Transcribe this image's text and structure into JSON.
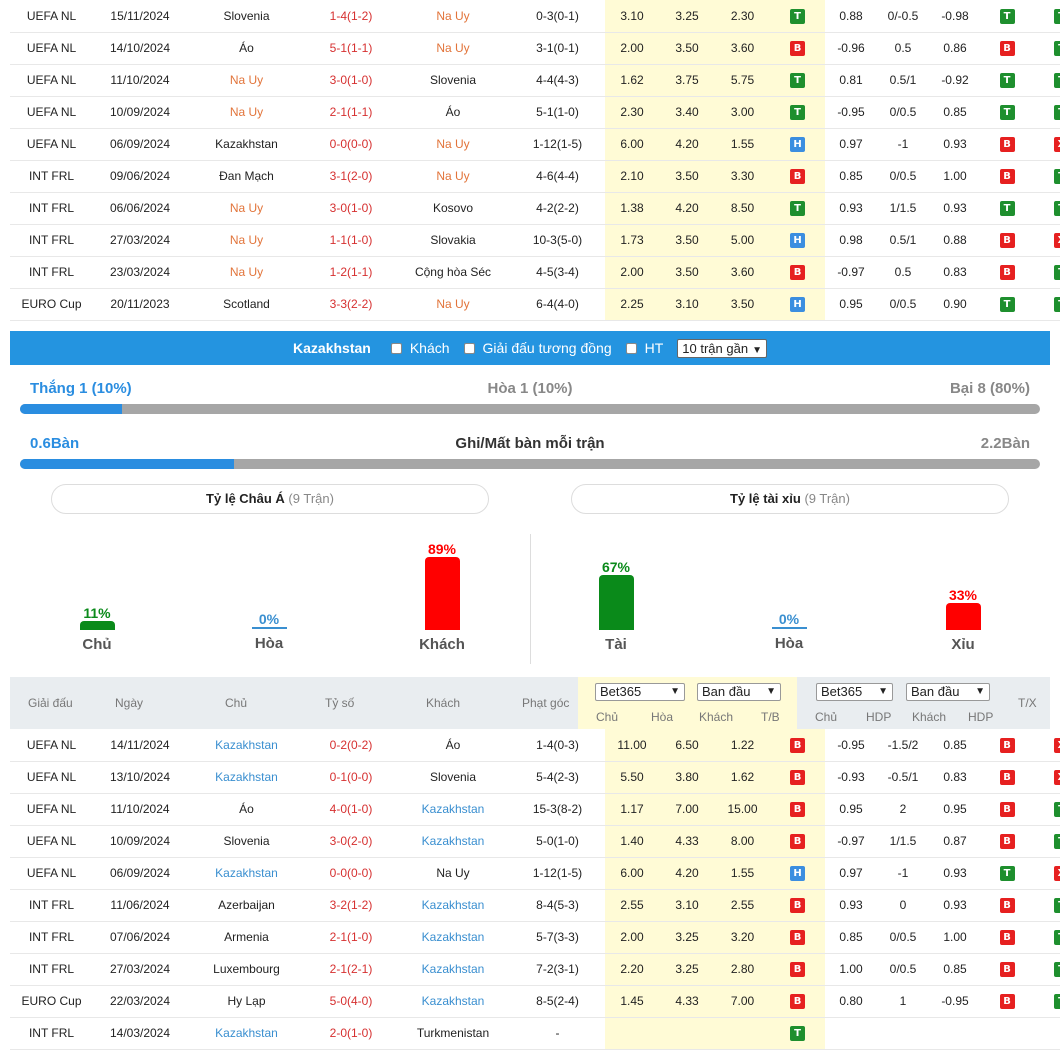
{
  "top_rows": [
    {
      "league": "UEFA NL",
      "date": "15/11/2024",
      "home": "Slovenia",
      "home_hl": false,
      "score": "1-4(1-2)",
      "away": "Na Uy",
      "away_hl": true,
      "corner": "0-3(0-1)",
      "o1": "3.10",
      "o2": "3.25",
      "o3": "2.30",
      "tb": "T",
      "a1": "0.88",
      "a2": "0/-0.5",
      "a3": "-0.98",
      "r1": "T",
      "r2": "T"
    },
    {
      "league": "UEFA NL",
      "date": "14/10/2024",
      "home": "Áo",
      "home_hl": false,
      "score": "5-1(1-1)",
      "away": "Na Uy",
      "away_hl": true,
      "corner": "3-1(0-1)",
      "o1": "2.00",
      "o2": "3.50",
      "o3": "3.60",
      "tb": "B",
      "a1": "-0.96",
      "a2": "0.5",
      "a3": "0.86",
      "r1": "B",
      "r2": "T"
    },
    {
      "league": "UEFA NL",
      "date": "11/10/2024",
      "home": "Na Uy",
      "home_hl": true,
      "score": "3-0(1-0)",
      "away": "Slovenia",
      "away_hl": false,
      "corner": "4-4(4-3)",
      "o1": "1.62",
      "o2": "3.75",
      "o3": "5.75",
      "tb": "T",
      "a1": "0.81",
      "a2": "0.5/1",
      "a3": "-0.92",
      "r1": "T",
      "r2": "T"
    },
    {
      "league": "UEFA NL",
      "date": "10/09/2024",
      "home": "Na Uy",
      "home_hl": true,
      "score": "2-1(1-1)",
      "away": "Áo",
      "away_hl": false,
      "corner": "5-1(1-0)",
      "o1": "2.30",
      "o2": "3.40",
      "o3": "3.00",
      "tb": "T",
      "a1": "-0.95",
      "a2": "0/0.5",
      "a3": "0.85",
      "r1": "T",
      "r2": "T"
    },
    {
      "league": "UEFA NL",
      "date": "06/09/2024",
      "home": "Kazakhstan",
      "home_hl": false,
      "score": "0-0(0-0)",
      "away": "Na Uy",
      "away_hl": true,
      "corner": "1-12(1-5)",
      "o1": "6.00",
      "o2": "4.20",
      "o3": "1.55",
      "tb": "H",
      "a1": "0.97",
      "a2": "-1",
      "a3": "0.93",
      "r1": "B",
      "r2": "X"
    },
    {
      "league": "INT FRL",
      "date": "09/06/2024",
      "home": "Đan Mạch",
      "home_hl": false,
      "score": "3-1(2-0)",
      "away": "Na Uy",
      "away_hl": true,
      "corner": "4-6(4-4)",
      "o1": "2.10",
      "o2": "3.50",
      "o3": "3.30",
      "tb": "B",
      "a1": "0.85",
      "a2": "0/0.5",
      "a3": "1.00",
      "r1": "B",
      "r2": "T"
    },
    {
      "league": "INT FRL",
      "date": "06/06/2024",
      "home": "Na Uy",
      "home_hl": true,
      "score": "3-0(1-0)",
      "away": "Kosovo",
      "away_hl": false,
      "corner": "4-2(2-2)",
      "o1": "1.38",
      "o2": "4.20",
      "o3": "8.50",
      "tb": "T",
      "a1": "0.93",
      "a2": "1/1.5",
      "a3": "0.93",
      "r1": "T",
      "r2": "T"
    },
    {
      "league": "INT FRL",
      "date": "27/03/2024",
      "home": "Na Uy",
      "home_hl": true,
      "score": "1-1(1-0)",
      "away": "Slovakia",
      "away_hl": false,
      "corner": "10-3(5-0)",
      "o1": "1.73",
      "o2": "3.50",
      "o3": "5.00",
      "tb": "H",
      "a1": "0.98",
      "a2": "0.5/1",
      "a3": "0.88",
      "r1": "B",
      "r2": "X"
    },
    {
      "league": "INT FRL",
      "date": "23/03/2024",
      "home": "Na Uy",
      "home_hl": true,
      "score": "1-2(1-1)",
      "away": "Cộng hòa Séc",
      "away_hl": false,
      "corner": "4-5(3-4)",
      "o1": "2.00",
      "o2": "3.50",
      "o3": "3.60",
      "tb": "B",
      "a1": "-0.97",
      "a2": "0.5",
      "a3": "0.83",
      "r1": "B",
      "r2": "T"
    },
    {
      "league": "EURO Cup",
      "date": "20/11/2023",
      "home": "Scotland",
      "home_hl": false,
      "score": "3-3(2-2)",
      "away": "Na Uy",
      "away_hl": true,
      "corner": "6-4(4-0)",
      "o1": "2.25",
      "o2": "3.10",
      "o3": "3.50",
      "tb": "H",
      "a1": "0.95",
      "a2": "0/0.5",
      "a3": "0.90",
      "r1": "T",
      "r2": "T"
    }
  ],
  "filter": {
    "team": "Kazakhstan",
    "opt_away": "Khách",
    "opt_same_league": "Giải đấu tương đồng",
    "opt_ht": "HT",
    "select": "10 trận gần"
  },
  "wdl": {
    "win": "Thắng 1 (10%)",
    "draw": "Hòa 1 (10%)",
    "loss": "Bại 8 (80%)",
    "win_fraction": 0.1
  },
  "goals": {
    "for": "0.6Bàn",
    "label": "Ghi/Mất bàn mỗi trận",
    "against": "2.2Bàn",
    "for_fraction": 0.21
  },
  "asian": {
    "title": "Tỷ lệ Châu Á",
    "count": "(9 Trận)",
    "items": [
      {
        "label": "Chủ",
        "pct": "11%",
        "value": 11,
        "color": "#0a8a1a"
      },
      {
        "label": "Hòa",
        "pct": "0%",
        "value": 0,
        "color": "#3a8fd0"
      },
      {
        "label": "Khách",
        "pct": "89%",
        "value": 89,
        "color": "#ff0000"
      }
    ]
  },
  "ou": {
    "title": "Tỷ lệ tài xỉu",
    "count": "(9 Trận)",
    "items": [
      {
        "label": "Tài",
        "pct": "67%",
        "value": 67,
        "color": "#0a8a1a"
      },
      {
        "label": "Hòa",
        "pct": "0%",
        "value": 0,
        "color": "#3a8fd0"
      },
      {
        "label": "Xỉu",
        "pct": "33%",
        "value": 33,
        "color": "#ff0000"
      }
    ]
  },
  "bot_header": {
    "league": "Giải đấu",
    "date": "Ngày",
    "home": "Chủ",
    "score": "Tỷ số",
    "away": "Khách",
    "corner": "Phạt góc",
    "sel1": "Bet365",
    "sel2": "Ban đầu",
    "sel3": "Bet365",
    "sel4": "Ban đầu",
    "c_home": "Chủ",
    "c_draw": "Hòa",
    "c_away": "Khách",
    "c_tb": "T/B",
    "a_home": "Chủ",
    "a_hdp": "HDP",
    "a_away": "Khách",
    "a_hdp2": "HDP",
    "tx": "T/X"
  },
  "bot_rows": [
    {
      "league": "UEFA NL",
      "date": "14/11/2024",
      "home": "Kazakhstan",
      "home_hl": true,
      "score": "0-2(0-2)",
      "away": "Áo",
      "away_hl": false,
      "corner": "1-4(0-3)",
      "o1": "11.00",
      "o2": "6.50",
      "o3": "1.22",
      "tb": "B",
      "a1": "-0.95",
      "a2": "-1.5/2",
      "a3": "0.85",
      "r1": "B",
      "r2": "X"
    },
    {
      "league": "UEFA NL",
      "date": "13/10/2024",
      "home": "Kazakhstan",
      "home_hl": true,
      "score": "0-1(0-0)",
      "away": "Slovenia",
      "away_hl": false,
      "corner": "5-4(2-3)",
      "o1": "5.50",
      "o2": "3.80",
      "o3": "1.62",
      "tb": "B",
      "a1": "-0.93",
      "a2": "-0.5/1",
      "a3": "0.83",
      "r1": "B",
      "r2": "X"
    },
    {
      "league": "UEFA NL",
      "date": "11/10/2024",
      "home": "Áo",
      "home_hl": false,
      "score": "4-0(1-0)",
      "away": "Kazakhstan",
      "away_hl": true,
      "corner": "15-3(8-2)",
      "o1": "1.17",
      "o2": "7.00",
      "o3": "15.00",
      "tb": "B",
      "a1": "0.95",
      "a2": "2",
      "a3": "0.95",
      "r1": "B",
      "r2": "T"
    },
    {
      "league": "UEFA NL",
      "date": "10/09/2024",
      "home": "Slovenia",
      "home_hl": false,
      "score": "3-0(2-0)",
      "away": "Kazakhstan",
      "away_hl": true,
      "corner": "5-0(1-0)",
      "o1": "1.40",
      "o2": "4.33",
      "o3": "8.00",
      "tb": "B",
      "a1": "-0.97",
      "a2": "1/1.5",
      "a3": "0.87",
      "r1": "B",
      "r2": "T"
    },
    {
      "league": "UEFA NL",
      "date": "06/09/2024",
      "home": "Kazakhstan",
      "home_hl": true,
      "score": "0-0(0-0)",
      "away": "Na Uy",
      "away_hl": false,
      "corner": "1-12(1-5)",
      "o1": "6.00",
      "o2": "4.20",
      "o3": "1.55",
      "tb": "H",
      "a1": "0.97",
      "a2": "-1",
      "a3": "0.93",
      "r1": "T",
      "r2": "X"
    },
    {
      "league": "INT FRL",
      "date": "11/06/2024",
      "home": "Azerbaijan",
      "home_hl": false,
      "score": "3-2(1-2)",
      "away": "Kazakhstan",
      "away_hl": true,
      "corner": "8-4(5-3)",
      "o1": "2.55",
      "o2": "3.10",
      "o3": "2.55",
      "tb": "B",
      "a1": "0.93",
      "a2": "0",
      "a3": "0.93",
      "r1": "B",
      "r2": "T"
    },
    {
      "league": "INT FRL",
      "date": "07/06/2024",
      "home": "Armenia",
      "home_hl": false,
      "score": "2-1(1-0)",
      "away": "Kazakhstan",
      "away_hl": true,
      "corner": "5-7(3-3)",
      "o1": "2.00",
      "o2": "3.25",
      "o3": "3.20",
      "tb": "B",
      "a1": "0.85",
      "a2": "0/0.5",
      "a3": "1.00",
      "r1": "B",
      "r2": "T"
    },
    {
      "league": "INT FRL",
      "date": "27/03/2024",
      "home": "Luxembourg",
      "home_hl": false,
      "score": "2-1(2-1)",
      "away": "Kazakhstan",
      "away_hl": true,
      "corner": "7-2(3-1)",
      "o1": "2.20",
      "o2": "3.25",
      "o3": "2.80",
      "tb": "B",
      "a1": "1.00",
      "a2": "0/0.5",
      "a3": "0.85",
      "r1": "B",
      "r2": "T"
    },
    {
      "league": "EURO Cup",
      "date": "22/03/2024",
      "home": "Hy Lạp",
      "home_hl": false,
      "score": "5-0(4-0)",
      "away": "Kazakhstan",
      "away_hl": true,
      "corner": "8-5(2-4)",
      "o1": "1.45",
      "o2": "4.33",
      "o3": "7.00",
      "tb": "B",
      "a1": "0.80",
      "a2": "1",
      "a3": "-0.95",
      "r1": "B",
      "r2": "T"
    },
    {
      "league": "INT FRL",
      "date": "14/03/2024",
      "home": "Kazakhstan",
      "home_hl": true,
      "score": "2-0(1-0)",
      "away": "Turkmenistan",
      "away_hl": false,
      "corner": "-",
      "o1": "",
      "o2": "",
      "o3": "",
      "tb": "T",
      "a1": "",
      "a2": "",
      "a3": "",
      "r1": "",
      "r2": ""
    }
  ]
}
